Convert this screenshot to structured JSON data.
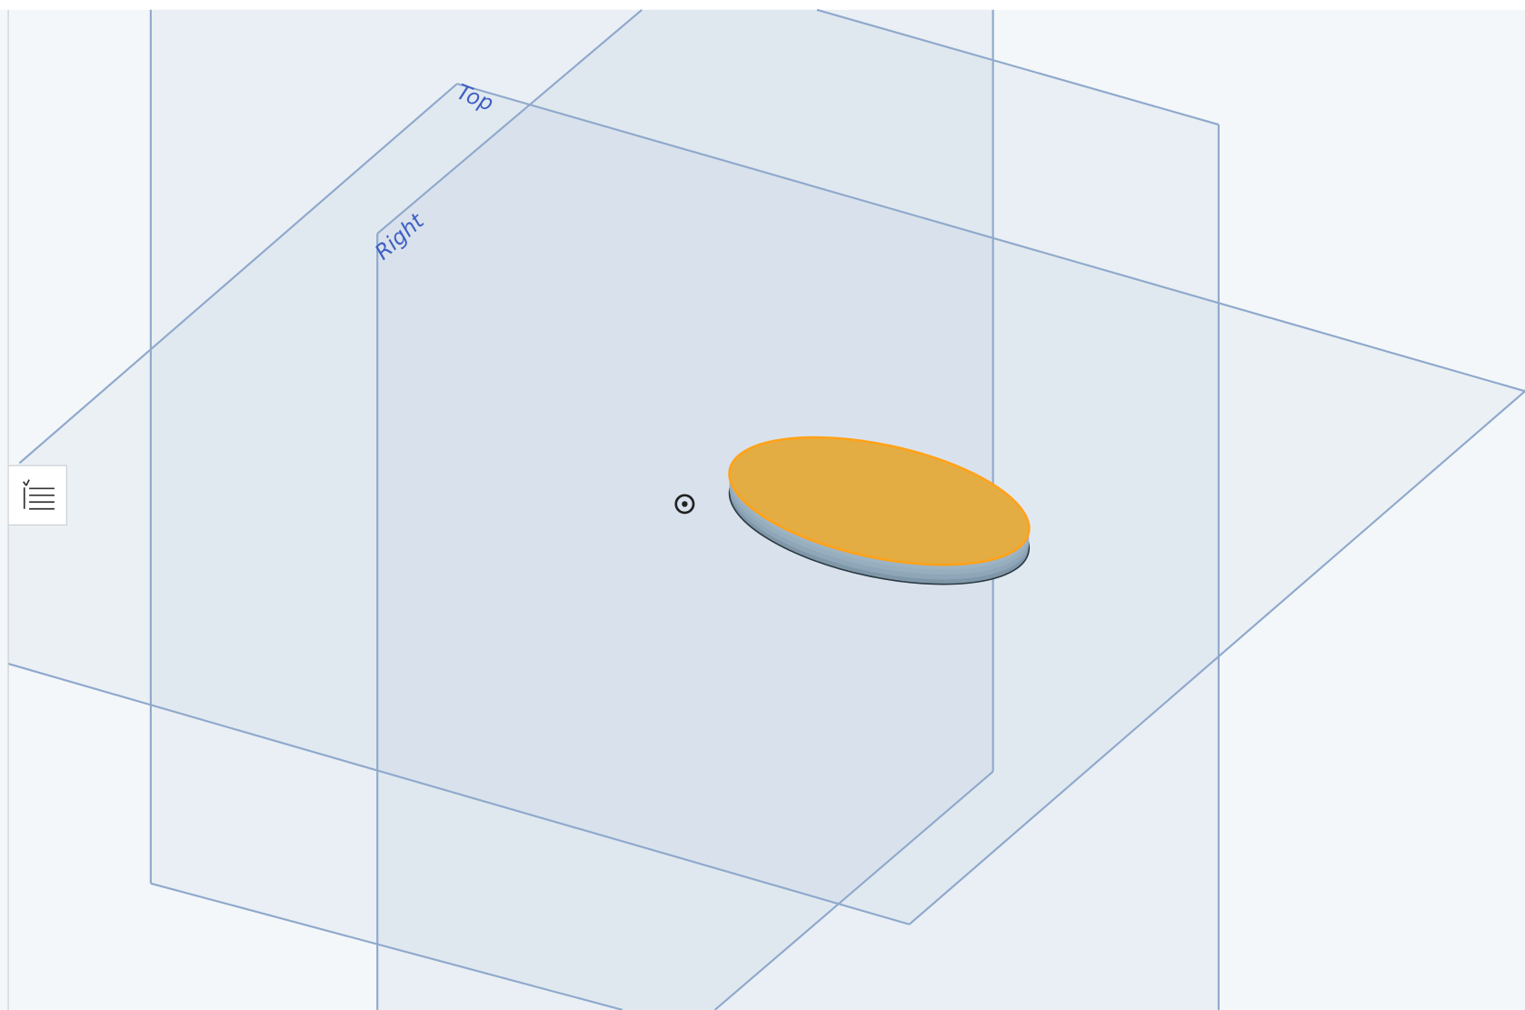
{
  "planes": {
    "top": {
      "label": "Top"
    },
    "right": {
      "label": "Right"
    }
  }
}
